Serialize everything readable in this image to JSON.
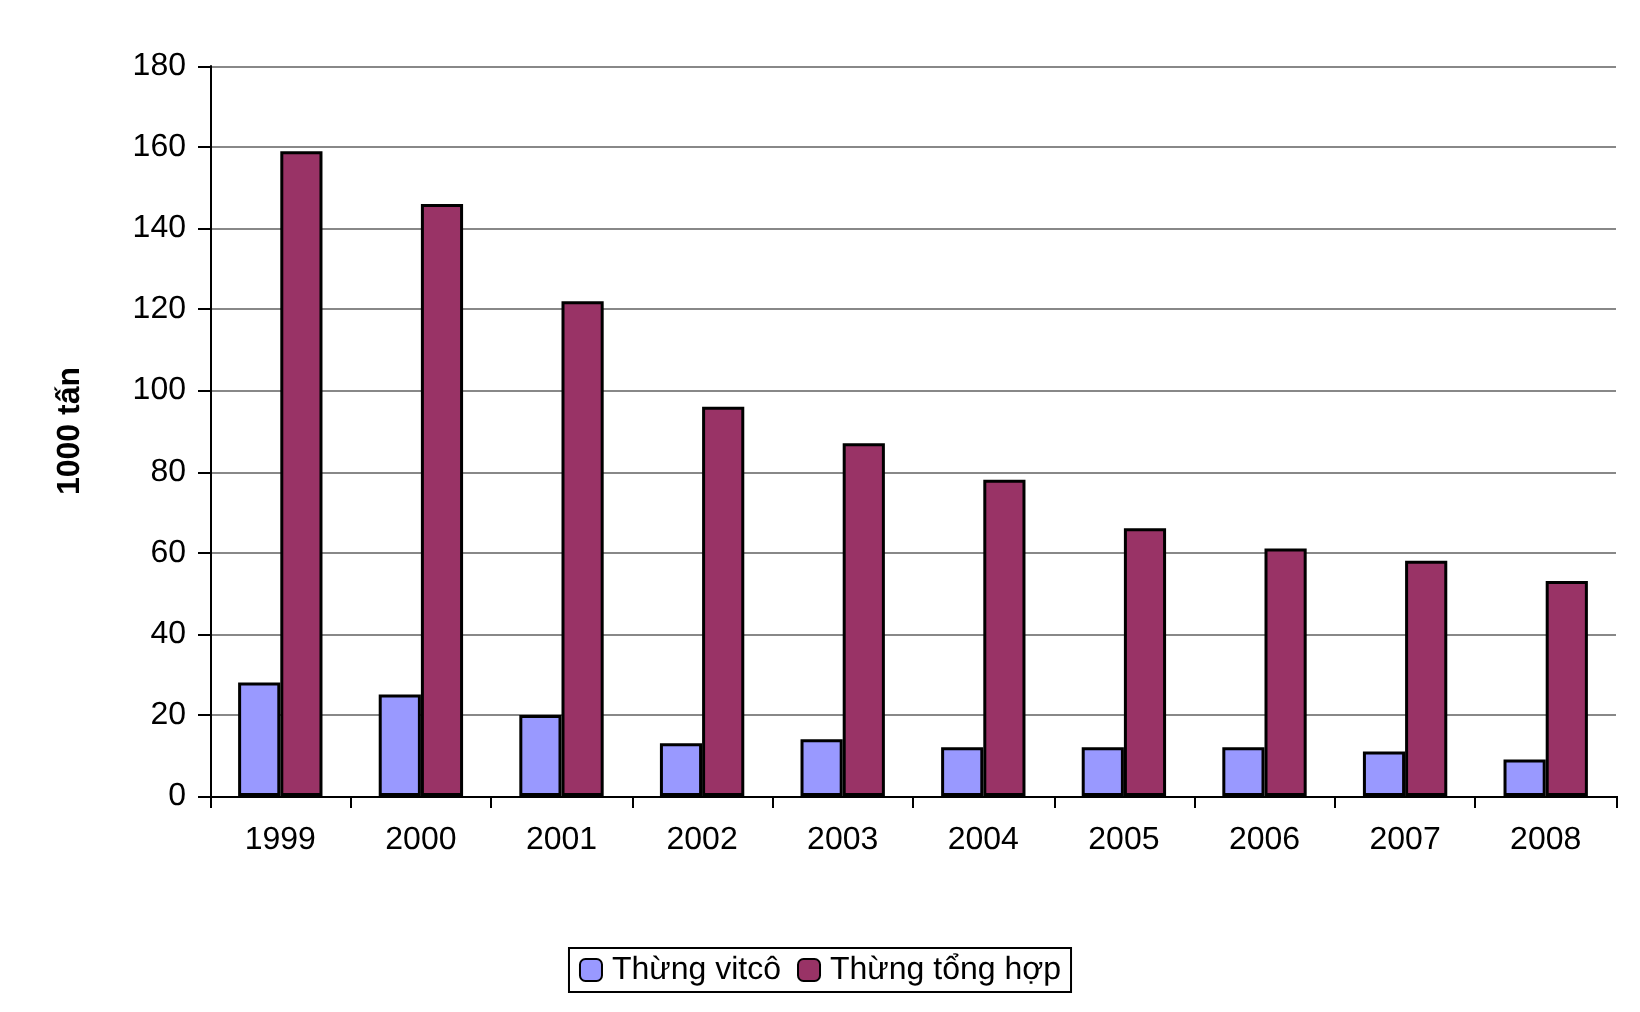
{
  "chart_data": {
    "type": "bar",
    "ylabel": "1000 tấn",
    "categories": [
      "1999",
      "2000",
      "2001",
      "2002",
      "2003",
      "2004",
      "2005",
      "2006",
      "2007",
      "2008"
    ],
    "series": [
      {
        "name": "Thừng vitcô",
        "color": "#9999ff",
        "values": [
          28,
          25,
          20,
          13,
          14,
          12,
          12,
          12,
          11,
          9
        ]
      },
      {
        "name": "Thừng tổng hợp",
        "color": "#993366",
        "values": [
          159,
          146,
          122,
          96,
          87,
          78,
          66,
          61,
          58,
          53
        ]
      }
    ],
    "ylim": [
      0,
      180
    ],
    "yticks": [
      0,
      20,
      40,
      60,
      80,
      100,
      120,
      140,
      160,
      180
    ],
    "grid": "y",
    "legend": "bottom"
  }
}
